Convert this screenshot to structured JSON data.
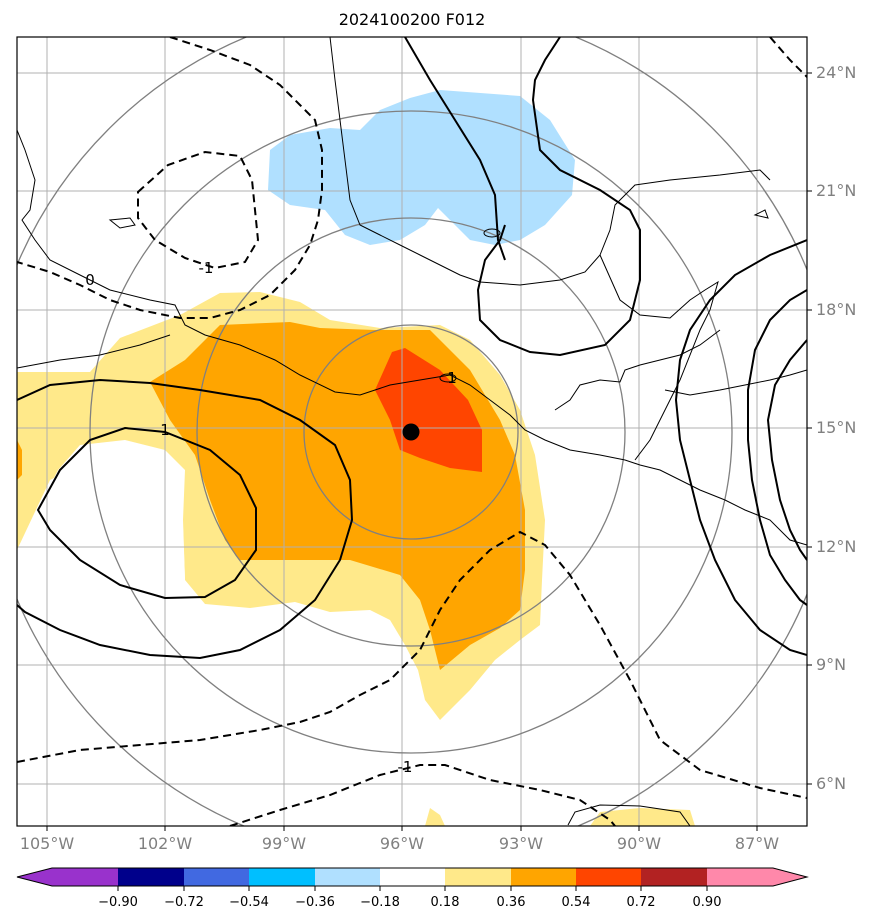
{
  "map": {
    "title": "2024100200 F012",
    "lat_labels": [
      "24°N",
      "21°N",
      "18°N",
      "15°N",
      "12°N",
      "9°N",
      "6°N"
    ],
    "lon_labels": [
      "105°W",
      "102°W",
      "99°W",
      "96°W",
      "93°W",
      "90°W",
      "87°W"
    ],
    "contour_labels": [
      "0",
      "-1",
      "1",
      "1",
      "-1"
    ],
    "colorbar": {
      "tick_labels": [
        "−0.90",
        "−0.72",
        "−0.54",
        "−0.36",
        "−0.18",
        "0.18",
        "0.36",
        "0.54",
        "0.72",
        "0.90"
      ],
      "colors": [
        "#9932CC",
        "#00008B",
        "#4169E1",
        "#00BFFF",
        "#B0E0FF",
        "#FFFFFF",
        "#FFE98A",
        "#FFA500",
        "#FF4500",
        "#B22222",
        "#FF88AA"
      ]
    },
    "storm_center_marker": "black-dot"
  }
}
